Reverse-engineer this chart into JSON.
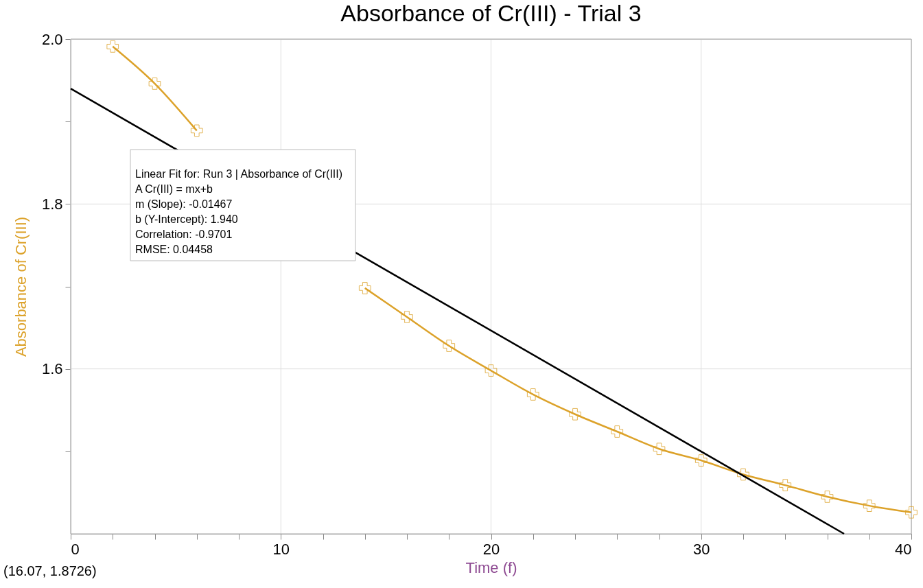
{
  "chart_data": {
    "type": "line",
    "title": "Absorbance of Cr(III) - Trial 3",
    "xlabel": "Time (f)",
    "ylabel": "Absorbance of Cr(III)",
    "x": [
      2,
      4,
      6,
      8,
      10,
      12,
      14,
      16,
      18,
      20,
      22,
      24,
      26,
      28,
      30,
      32,
      34,
      36,
      38,
      40
    ],
    "series": [
      {
        "color": "#dca22a",
        "marker": "cross",
        "values": [
          1.991,
          1.946,
          1.889,
          null,
          null,
          null,
          1.698,
          1.663,
          1.628,
          1.598,
          1.569,
          1.545,
          1.524,
          1.503,
          1.489,
          1.472,
          1.459,
          1.445,
          1.434,
          1.426
        ]
      },
      {
        "color": "#000000",
        "marker": "none",
        "x": [
          0,
          36.8
        ],
        "values": [
          1.94,
          1.4
        ]
      }
    ],
    "xlim": [
      0,
      40
    ],
    "ylim": [
      1.4,
      2.0
    ],
    "xticks": [
      0,
      {
        "value": 2,
        "label": null
      },
      {
        "value": 4,
        "label": null
      },
      {
        "value": 6,
        "label": null
      },
      {
        "value": 8,
        "label": null
      },
      10,
      {
        "value": 12,
        "label": null
      },
      {
        "value": 14,
        "label": null
      },
      {
        "value": 16,
        "label": null
      },
      {
        "value": 18,
        "label": null
      },
      20,
      {
        "value": 22,
        "label": null
      },
      {
        "value": 24,
        "label": null
      },
      {
        "value": 26,
        "label": null
      },
      {
        "value": 28,
        "label": null
      },
      30,
      {
        "value": 32,
        "label": null
      },
      {
        "value": 34,
        "label": null
      },
      {
        "value": 36,
        "label": null
      },
      {
        "value": 38,
        "label": null
      },
      40
    ],
    "yticks": [
      {
        "value": 1.5,
        "label": null
      },
      {
        "value": 1.6,
        "label": "1.6"
      },
      {
        "value": 1.7,
        "label": null
      },
      {
        "value": 1.8,
        "label": "1.8"
      },
      {
        "value": 1.9,
        "label": null
      },
      {
        "value": 2.0,
        "label": "2.0"
      }
    ],
    "grid": true,
    "annotations": [
      "Linear Fit for: Run 3 | Absorbance of Cr(III)",
      "A Cr(III) = mx+b",
      "m (Slope): -0.01467",
      "b (Y-Intercept): 1.940",
      "Correlation: -0.9701",
      "RMSE: 0.04458",
      "(16.07, 1.8726)"
    ]
  }
}
